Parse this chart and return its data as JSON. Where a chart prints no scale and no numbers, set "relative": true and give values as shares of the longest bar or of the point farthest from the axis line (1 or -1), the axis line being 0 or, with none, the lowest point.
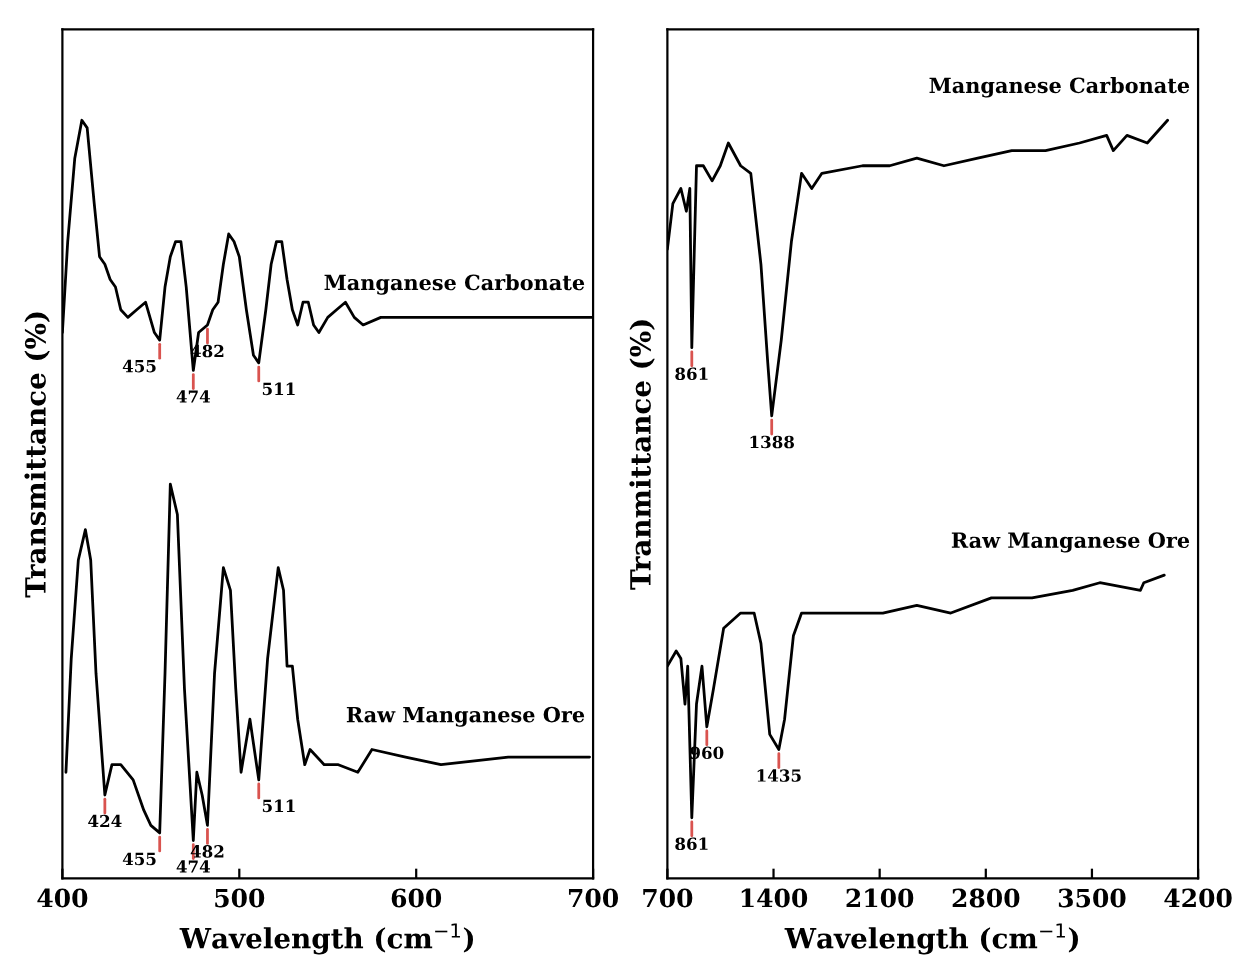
{
  "chart_data": [
    {
      "type": "line",
      "relative": true,
      "xlabel": "Wavelength (cm$^{−1}$)",
      "ylabel": "Transmittance (%)",
      "xlim": [
        400,
        700
      ],
      "xticks": [
        400,
        500,
        600,
        700
      ],
      "grid": false,
      "legend": false,
      "tick_labels": "x",
      "series": [
        {
          "name": "Manganese Carbonate",
          "color": "#000000",
          "x": [
            400,
            403,
            407,
            411,
            414,
            418,
            421,
            424,
            427,
            430,
            433,
            437,
            442,
            447,
            452,
            455,
            458,
            461,
            464,
            467,
            470,
            474,
            477,
            482,
            485,
            488,
            491,
            494,
            497,
            500,
            504,
            508,
            511,
            515,
            518,
            521,
            524,
            527,
            530,
            533,
            536,
            539,
            542,
            545,
            550,
            555,
            560,
            565,
            570,
            580,
            600,
            650,
            700
          ],
          "values": [
            0.72,
            0.84,
            0.95,
            1.0,
            0.99,
            0.89,
            0.82,
            0.81,
            0.79,
            0.78,
            0.75,
            0.74,
            0.75,
            0.76,
            0.72,
            0.71,
            0.78,
            0.82,
            0.84,
            0.84,
            0.78,
            0.67,
            0.72,
            0.73,
            0.75,
            0.76,
            0.81,
            0.85,
            0.84,
            0.82,
            0.75,
            0.69,
            0.68,
            0.75,
            0.81,
            0.84,
            0.84,
            0.79,
            0.75,
            0.73,
            0.76,
            0.76,
            0.73,
            0.72,
            0.74,
            0.75,
            0.76,
            0.74,
            0.73,
            0.74,
            0.74,
            0.74,
            0.74
          ]
        },
        {
          "name": "Raw Manganese Ore",
          "color": "#000000",
          "x": [
            402,
            405,
            409,
            413,
            416,
            419,
            424,
            428,
            433,
            440,
            446,
            450,
            455,
            458,
            461,
            465,
            469,
            474,
            476,
            479,
            482,
            486,
            491,
            495,
            498,
            501,
            506,
            511,
            516,
            522,
            525,
            527,
            530,
            533,
            537,
            540,
            548,
            556,
            567,
            575,
            594,
            614,
            652,
            698
          ],
          "values": [
            0.14,
            0.29,
            0.42,
            0.46,
            0.42,
            0.27,
            0.11,
            0.15,
            0.15,
            0.13,
            0.09,
            0.07,
            0.06,
            0.27,
            0.52,
            0.48,
            0.25,
            0.05,
            0.14,
            0.11,
            0.07,
            0.27,
            0.41,
            0.38,
            0.25,
            0.14,
            0.21,
            0.13,
            0.29,
            0.41,
            0.38,
            0.28,
            0.28,
            0.21,
            0.15,
            0.17,
            0.15,
            0.15,
            0.14,
            0.17,
            0.16,
            0.15,
            0.16,
            0.16
          ]
        }
      ],
      "annotations": [
        {
          "text": "455",
          "x": 455,
          "y": 0.71
        },
        {
          "text": "474",
          "x": 474,
          "y": 0.67
        },
        {
          "text": "482",
          "x": 482,
          "y": 0.73
        },
        {
          "text": "511",
          "x": 511,
          "y": 0.68
        },
        {
          "text": "424",
          "x": 424,
          "y": 0.11
        },
        {
          "text": "455",
          "x": 455,
          "y": 0.06
        },
        {
          "text": "474",
          "x": 474,
          "y": 0.05
        },
        {
          "text": "482",
          "x": 482,
          "y": 0.07
        },
        {
          "text": "511",
          "x": 511,
          "y": 0.13
        }
      ]
    },
    {
      "type": "line",
      "relative": true,
      "xlabel": "Wavelength (cm$^{−1}$)",
      "ylabel": "Tranmittance (%)",
      "xlim": [
        700,
        4200
      ],
      "xticks": [
        700,
        1400,
        2100,
        2800,
        3500,
        4200
      ],
      "grid": false,
      "legend": false,
      "tick_labels": "x",
      "series": [
        {
          "name": "Manganese Carbonate",
          "color": "#000000",
          "x": [
            700,
            736,
            789,
            825,
            848,
            861,
            892,
            937,
            995,
            1049,
            1102,
            1183,
            1250,
            1317,
            1362,
            1388,
            1451,
            1518,
            1585,
            1652,
            1719,
            1987,
            2166,
            2345,
            2524,
            2747,
            2971,
            3194,
            3418,
            3597,
            3641,
            3731,
            3865,
            3999
          ],
          "values": [
            0.83,
            0.89,
            0.91,
            0.88,
            0.91,
            0.7,
            0.94,
            0.94,
            0.92,
            0.94,
            0.97,
            0.94,
            0.93,
            0.81,
            0.68,
            0.61,
            0.71,
            0.84,
            0.93,
            0.91,
            0.93,
            0.94,
            0.94,
            0.95,
            0.94,
            0.95,
            0.96,
            0.96,
            0.97,
            0.98,
            0.96,
            0.98,
            0.97,
            1.0
          ]
        },
        {
          "name": "Raw Manganese Ore",
          "color": "#000000",
          "x": [
            700,
            758,
            789,
            816,
            834,
            861,
            892,
            928,
            960,
            1004,
            1071,
            1183,
            1272,
            1317,
            1375,
            1435,
            1473,
            1531,
            1585,
            1853,
            2121,
            2345,
            2569,
            2837,
            3105,
            3373,
            3552,
            3820,
            3842,
            3977
          ],
          "values": [
            0.28,
            0.3,
            0.29,
            0.23,
            0.28,
            0.08,
            0.23,
            0.28,
            0.2,
            0.25,
            0.33,
            0.35,
            0.35,
            0.31,
            0.19,
            0.17,
            0.21,
            0.32,
            0.35,
            0.35,
            0.35,
            0.36,
            0.35,
            0.37,
            0.37,
            0.38,
            0.39,
            0.38,
            0.39,
            0.4
          ]
        }
      ],
      "annotations": [
        {
          "text": "861",
          "x": 861,
          "y": 0.7
        },
        {
          "text": "1388",
          "x": 1388,
          "y": 0.61
        },
        {
          "text": "861",
          "x": 861,
          "y": 0.08
        },
        {
          "text": "960",
          "x": 960,
          "y": 0.2
        },
        {
          "text": "1435",
          "x": 1435,
          "y": 0.17
        }
      ]
    }
  ]
}
